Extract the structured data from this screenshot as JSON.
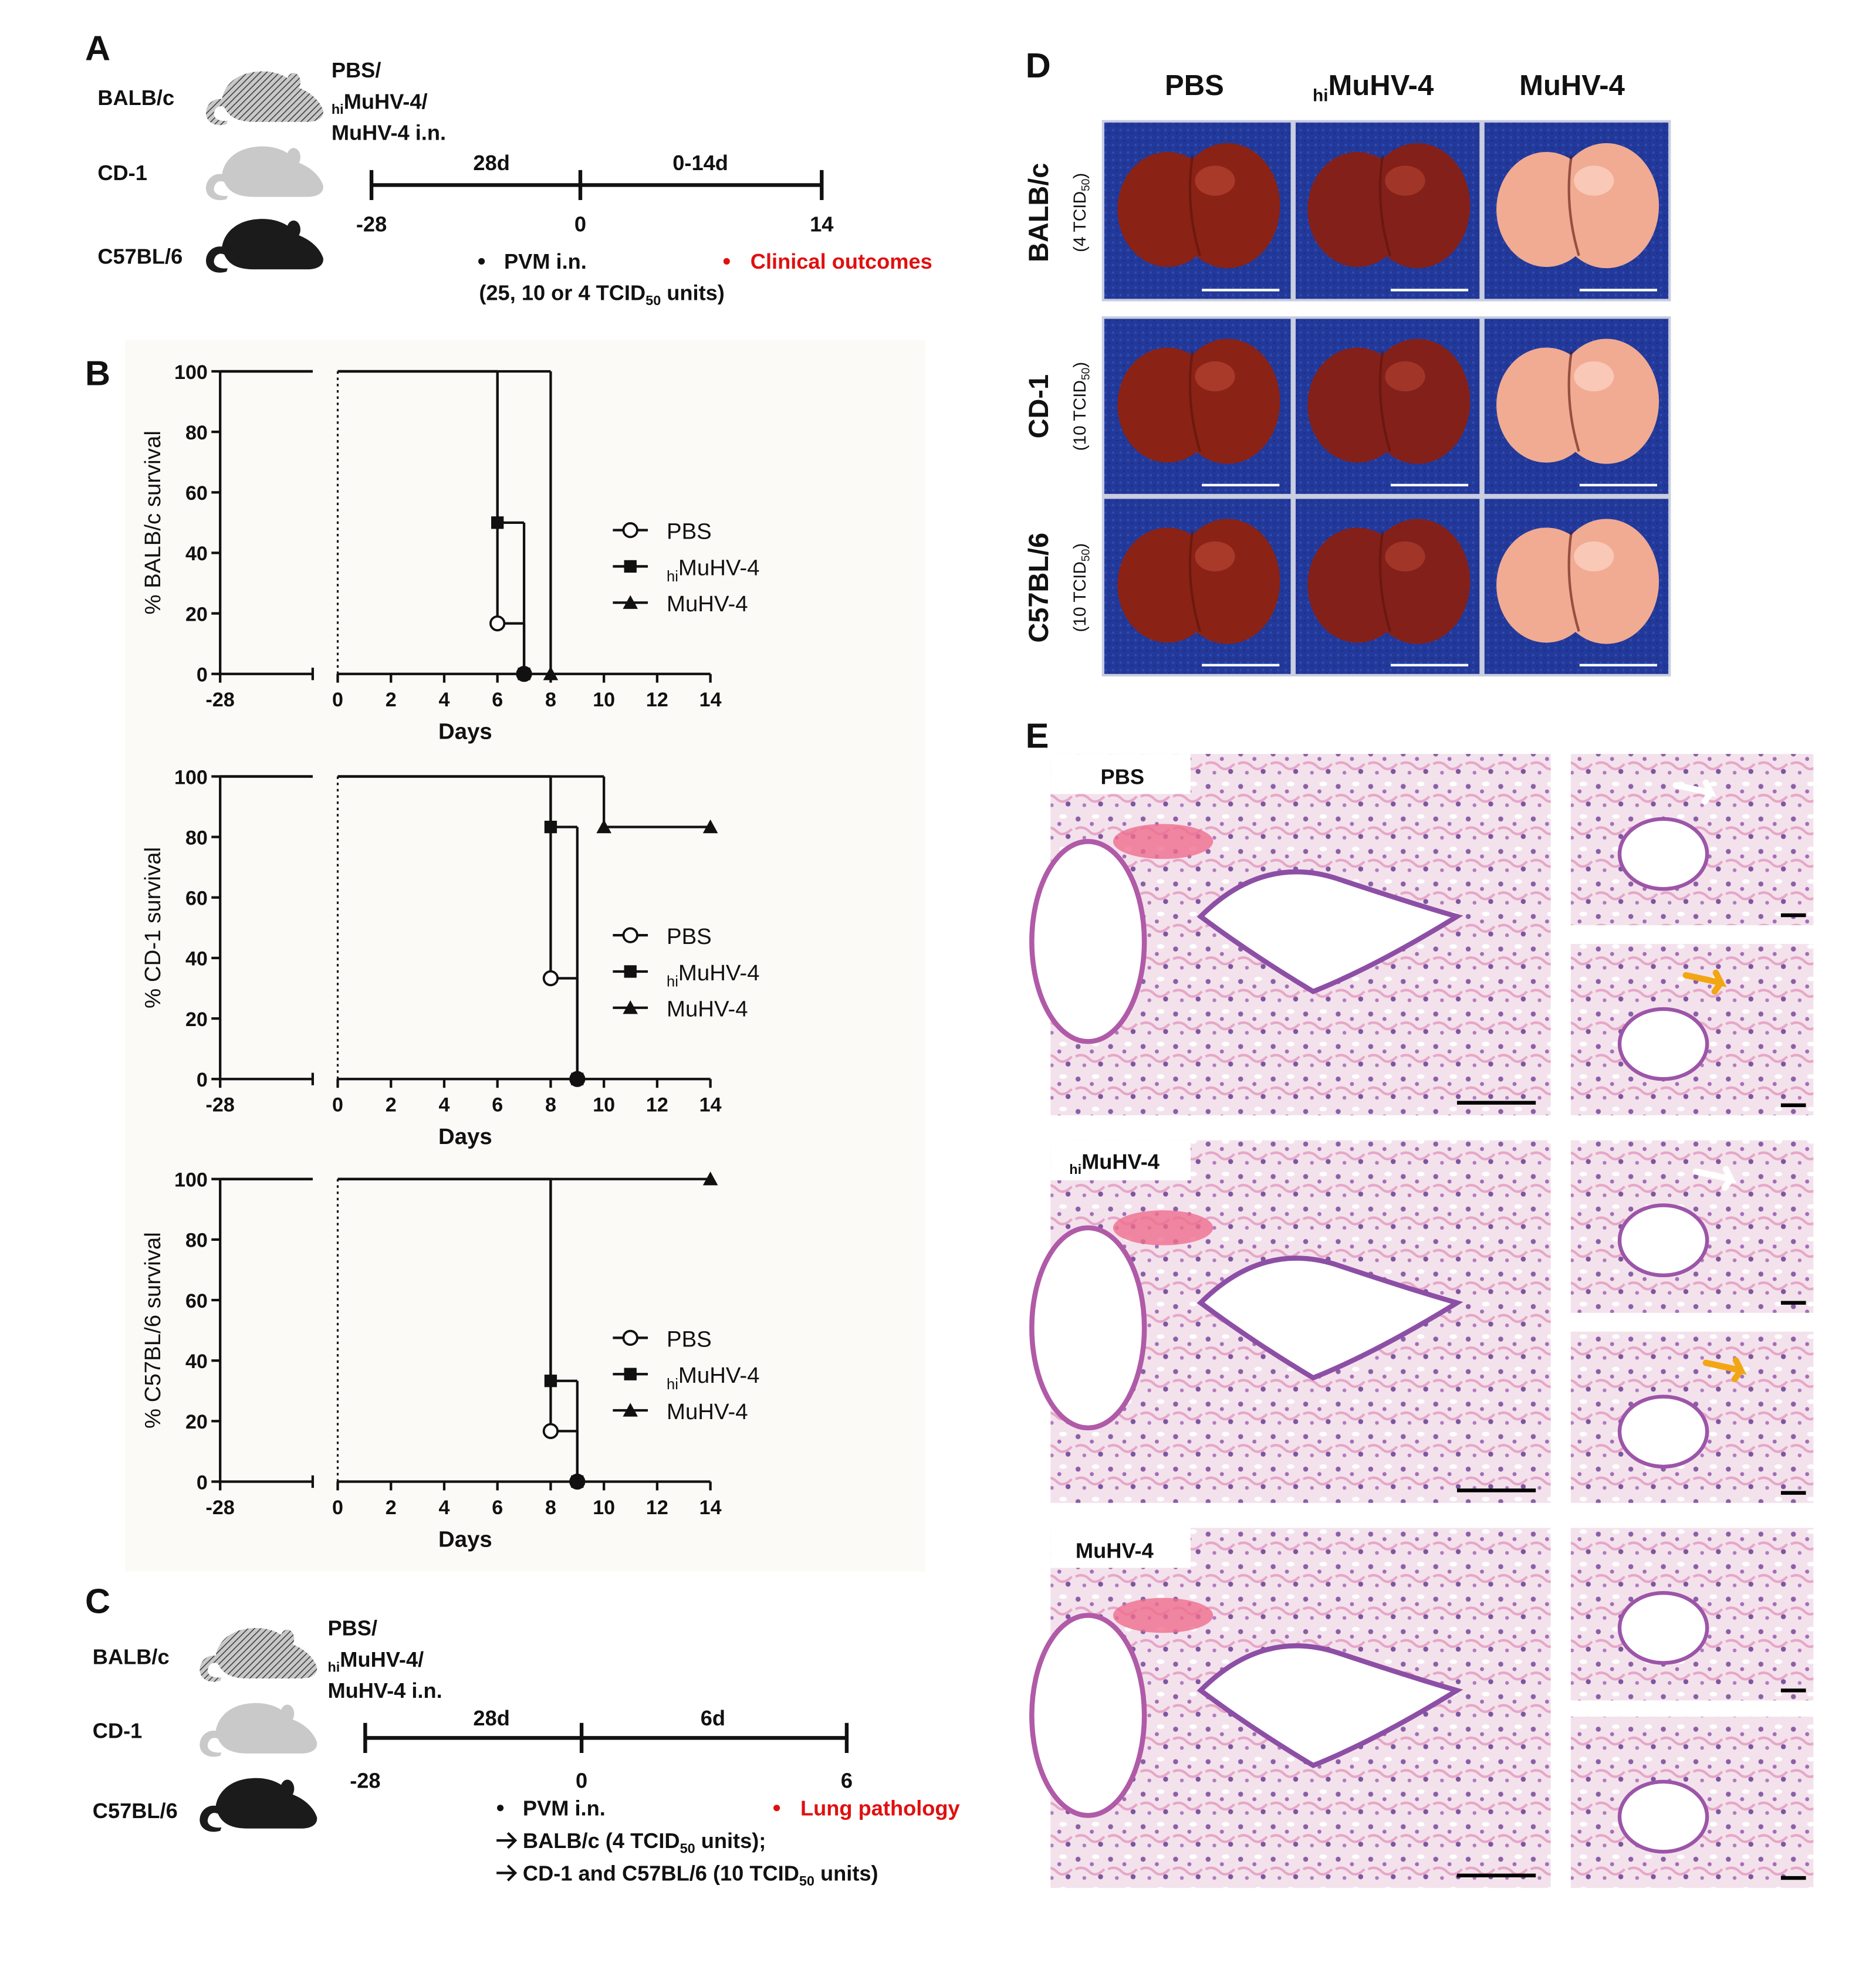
{
  "panel_a": {
    "label": "A",
    "strains": [
      "BALB/c",
      "CD-1",
      "C57BL/6"
    ],
    "treatment": {
      "line1": "PBS/",
      "line2_sub": "hi",
      "line2": "MuHV-4/",
      "line3": "MuHV-4 i.n."
    },
    "timeline": {
      "periods": [
        "28d",
        "0-14d"
      ],
      "ticks": [
        "-28",
        "0",
        "14"
      ]
    },
    "challenge": "PVM i.n.",
    "dose": {
      "before": "(25, 10 or 4 TCID",
      "sub": "50",
      "after": " units)"
    },
    "outcome": "Clinical outcomes"
  },
  "panel_b": {
    "label": "B"
  },
  "chart_data": [
    {
      "type": "line",
      "step": true,
      "ylabel": "% BALB/c survival",
      "xlabel": "Days",
      "xlim": [
        -28,
        14
      ],
      "xbreak": [
        -24.5,
        0
      ],
      "ylim": [
        0,
        100
      ],
      "xticks": [
        -28,
        0,
        2,
        4,
        6,
        8,
        10,
        12,
        14
      ],
      "yticks": [
        0,
        20,
        40,
        60,
        80,
        100
      ],
      "series": [
        {
          "name": "PBS",
          "marker": "open-circle",
          "color": "#111111",
          "x": [
            -28,
            6,
            7
          ],
          "values": [
            100,
            16.7,
            0
          ]
        },
        {
          "name": "MuHV-4",
          "name_sub": "hi",
          "marker": "square",
          "color": "#111111",
          "x": [
            -28,
            6,
            7
          ],
          "values": [
            100,
            50,
            0
          ]
        },
        {
          "name": "MuHV-4",
          "marker": "triangle",
          "color": "#111111",
          "x": [
            -28,
            8
          ],
          "values": [
            100,
            0
          ]
        }
      ]
    },
    {
      "type": "line",
      "step": true,
      "ylabel": "% CD-1 survival",
      "xlabel": "Days",
      "xlim": [
        -28,
        14
      ],
      "xbreak": [
        -24.5,
        0
      ],
      "ylim": [
        0,
        100
      ],
      "xticks": [
        -28,
        0,
        2,
        4,
        6,
        8,
        10,
        12,
        14
      ],
      "yticks": [
        0,
        20,
        40,
        60,
        80,
        100
      ],
      "series": [
        {
          "name": "PBS",
          "marker": "open-circle",
          "color": "#111111",
          "x": [
            -28,
            8,
            9
          ],
          "values": [
            100,
            33.3,
            0
          ]
        },
        {
          "name": "MuHV-4",
          "name_sub": "hi",
          "marker": "square",
          "color": "#111111",
          "x": [
            -28,
            8,
            9
          ],
          "values": [
            100,
            83.3,
            0
          ]
        },
        {
          "name": "MuHV-4",
          "marker": "triangle",
          "color": "#111111",
          "x": [
            -28,
            10,
            14
          ],
          "values": [
            100,
            83.3,
            83.3
          ]
        }
      ]
    },
    {
      "type": "line",
      "step": true,
      "ylabel": "% C57BL/6 survival",
      "xlabel": "Days",
      "xlim": [
        -28,
        14
      ],
      "xbreak": [
        -24.5,
        0
      ],
      "ylim": [
        0,
        100
      ],
      "xticks": [
        -28,
        0,
        2,
        4,
        6,
        8,
        10,
        12,
        14
      ],
      "yticks": [
        0,
        20,
        40,
        60,
        80,
        100
      ],
      "series": [
        {
          "name": "PBS",
          "marker": "open-circle",
          "color": "#111111",
          "x": [
            -28,
            8,
            9
          ],
          "values": [
            100,
            16.7,
            0
          ]
        },
        {
          "name": "MuHV-4",
          "name_sub": "hi",
          "marker": "square",
          "color": "#111111",
          "x": [
            -28,
            8,
            9
          ],
          "values": [
            100,
            33.3,
            0
          ]
        },
        {
          "name": "MuHV-4",
          "marker": "triangle",
          "color": "#111111",
          "x": [
            -28,
            14
          ],
          "values": [
            100,
            100
          ]
        }
      ]
    }
  ],
  "panel_c": {
    "label": "C",
    "strains": [
      "BALB/c",
      "CD-1",
      "C57BL/6"
    ],
    "treatment": {
      "line1": "PBS/",
      "line2_sub": "hi",
      "line2": "MuHV-4/",
      "line3": "MuHV-4 i.n."
    },
    "timeline": {
      "periods": [
        "28d",
        "6d"
      ],
      "ticks": [
        "-28",
        "0",
        "6"
      ]
    },
    "challenge": "PVM i.n.",
    "outcome": "Lung pathology",
    "groups": [
      {
        "before": "BALB/c (4 TCID",
        "sub": "50",
        "after": " units);"
      },
      {
        "before": "CD-1 and C57BL/6 (10 TCID",
        "sub": "50",
        "after": " units)"
      }
    ]
  },
  "panel_d": {
    "label": "D",
    "columns": [
      {
        "text": "PBS"
      },
      {
        "sub": "hi",
        "text": "MuHV-4"
      },
      {
        "text": "MuHV-4"
      }
    ],
    "rows": [
      {
        "strain": "BALB/c",
        "dose": {
          "before": "(4 TCID",
          "sub": "50",
          "after": ")"
        }
      },
      {
        "strain": "CD-1",
        "dose": {
          "before": "(10 TCID",
          "sub": "50",
          "after": ")"
        }
      },
      {
        "strain": "C57BL/6",
        "dose": {
          "before": "(10 TCID",
          "sub": "50",
          "after": ")"
        }
      }
    ]
  },
  "panel_e": {
    "label": "E",
    "rows": [
      {
        "text": "PBS"
      },
      {
        "sub": "hi",
        "text": "MuHV-4"
      },
      {
        "text": "MuHV-4"
      }
    ]
  }
}
